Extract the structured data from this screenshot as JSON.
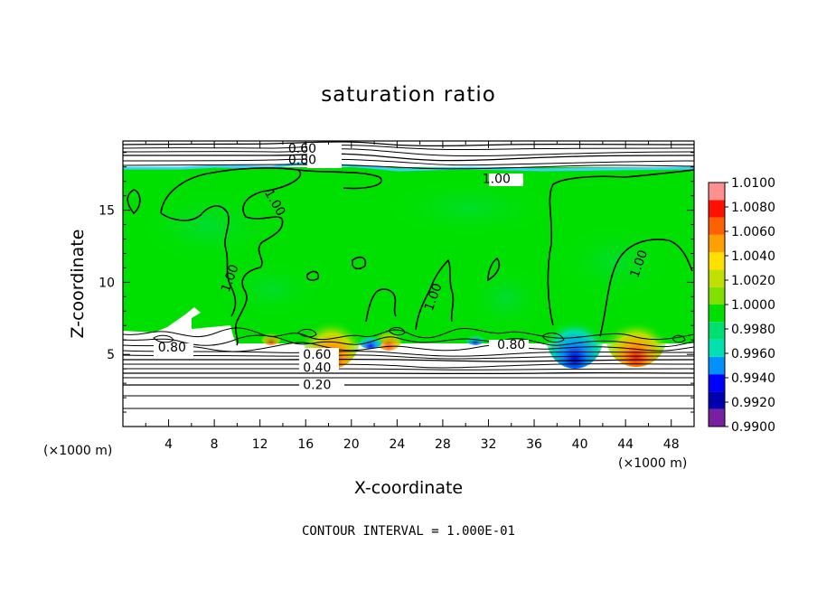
{
  "chart_data": {
    "type": "heatmap",
    "title": "saturation ratio",
    "xlabel": "X-coordinate",
    "ylabel": "Z-coordinate",
    "x_unit": "(×1000 m)",
    "z_unit": "(×1000 m)",
    "footer": "CONTOUR INTERVAL = 1.000E-01",
    "xlim": [
      0,
      50
    ],
    "ylim": [
      0,
      19.8
    ],
    "x_ticks": [
      4,
      8,
      12,
      16,
      20,
      24,
      28,
      32,
      36,
      40,
      44,
      48
    ],
    "y_ticks": [
      5,
      10,
      15
    ],
    "colorbar": {
      "colors": [
        "#7a1fa0",
        "#0000b0",
        "#0000ff",
        "#0090ff",
        "#00e0b0",
        "#00e070",
        "#00e000",
        "#80e000",
        "#c0e000",
        "#ffe000",
        "#ffa000",
        "#ff6000",
        "#ff1000",
        "#ff9090"
      ],
      "labels": [
        "0.9900",
        "0.9920",
        "0.9940",
        "0.9960",
        "0.9980",
        "1.0000",
        "1.0020",
        "1.0040",
        "1.0060",
        "1.0080",
        "1.0100"
      ]
    },
    "contour_labels": [
      {
        "text": "0.60",
        "x": 15.7,
        "z": 19.3
      },
      {
        "text": "0.80",
        "x": 15.7,
        "z": 18.5
      },
      {
        "text": "1.00",
        "x": 32.7,
        "z": 17.2
      },
      {
        "text": "1.00",
        "x": 13.0,
        "z": 15.7
      },
      {
        "text": "1.00",
        "x": 9.7,
        "z": 10.5
      },
      {
        "text": "1.00",
        "x": 27.5,
        "z": 9.2
      },
      {
        "text": "1.00",
        "x": 45.5,
        "z": 11.5
      },
      {
        "text": "0.80",
        "x": 4.3,
        "z": 5.5
      },
      {
        "text": "0.80",
        "x": 34.0,
        "z": 5.7
      },
      {
        "text": "0.60",
        "x": 17.0,
        "z": 5.0
      },
      {
        "text": "0.40",
        "x": 17.0,
        "z": 4.1
      },
      {
        "text": "0.20",
        "x": 17.0,
        "z": 2.9
      }
    ]
  }
}
